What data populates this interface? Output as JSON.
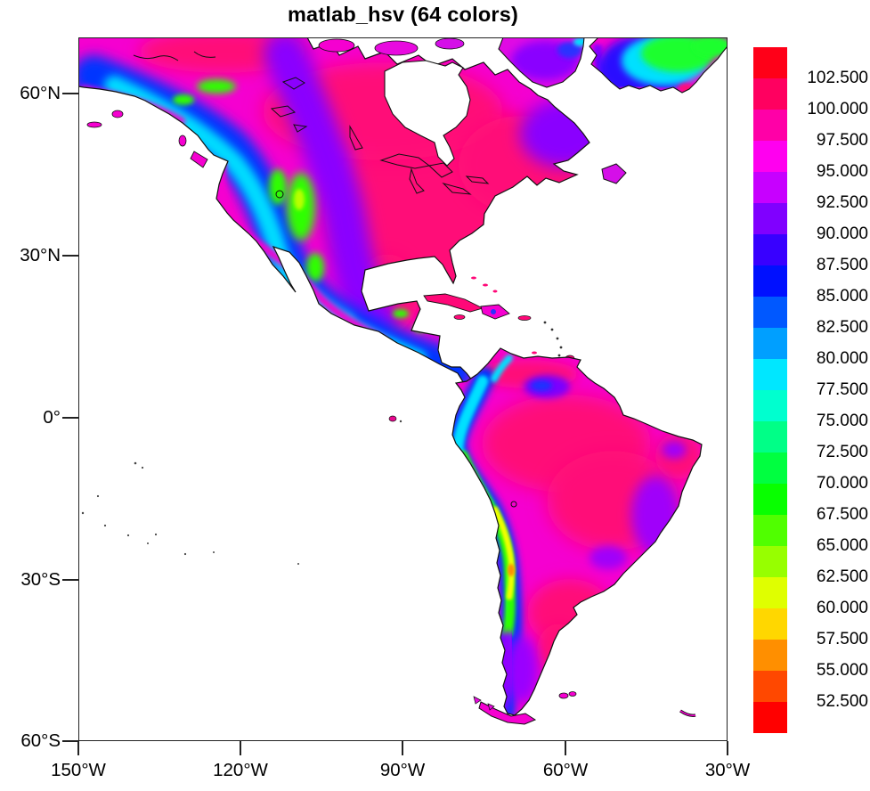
{
  "title": "matlab_hsv (64 colors)",
  "axes": {
    "x_ticks": [
      "150°W",
      "120°W",
      "90°W",
      "60°W",
      "30°W"
    ],
    "y_ticks": [
      "60°N",
      "30°N",
      "0°",
      "30°S",
      "60°S"
    ]
  },
  "colorbar": {
    "labels": [
      "102.500",
      "100.000",
      "97.500",
      "95.000",
      "92.500",
      "90.000",
      "87.500",
      "85.000",
      "82.500",
      "80.000",
      "77.500",
      "75.000",
      "72.500",
      "70.000",
      "67.500",
      "65.000",
      "62.500",
      "60.000",
      "57.500",
      "55.000",
      "52.500"
    ],
    "segment_colors_top_to_bottom": [
      "#FF0018",
      "#FF0060",
      "#FF00A7",
      "#FF00EF",
      "#C700FF",
      "#8000FF",
      "#3800FF",
      "#0010FF",
      "#0058FF",
      "#009FFF",
      "#00E7FF",
      "#00FFCF",
      "#00FF87",
      "#00FF40",
      "#08FF00",
      "#50FF00",
      "#97FF00",
      "#DFFF00",
      "#FFD700",
      "#FF8F00",
      "#FF4800",
      "#FF0000"
    ]
  },
  "chart_data": {
    "type": "heatmap",
    "subtype": "filled-contour-map-over-geography",
    "title": "matlab_hsv (64 colors)",
    "colormap": "matlab_hsv",
    "colormap_color_count": 64,
    "map_region": "North America and South America",
    "ocean_fill": "#FFFFFF",
    "coastline_color": "#000000",
    "x_axis": {
      "tick_labels": [
        "150°W",
        "120°W",
        "90°W",
        "60°W",
        "30°W"
      ],
      "lon_range_deg": [
        -150,
        -30
      ]
    },
    "y_axis": {
      "tick_labels": [
        "60°N",
        "30°N",
        "0°",
        "30°S",
        "60°S"
      ],
      "lat_range_deg": [
        -61,
        71
      ]
    },
    "contour_levels": [
      52.5,
      55.0,
      57.5,
      60.0,
      62.5,
      65.0,
      67.5,
      70.0,
      72.5,
      75.0,
      77.5,
      80.0,
      82.5,
      85.0,
      87.5,
      90.0,
      92.5,
      95.0,
      97.5,
      100.0,
      102.5
    ],
    "level_step": 2.5,
    "legend_position": "right-vertical",
    "legend_values_increase": "upward",
    "n_fill_colors_used": 22,
    "observed_features": [
      {
        "region": "Eastern North America lowlands and Gulf coast",
        "approx_level": "100–102.5",
        "color": "crimson / deep pink"
      },
      {
        "region": "Central Canada, coastal fringes, most lowland coasts",
        "approx_level": "95–100",
        "color": "magenta"
      },
      {
        "region": "Rocky Mountains / Great Basin / British Columbia / Alaska Range",
        "approx_level": "72.5–87.5",
        "color": "blue to cyan"
      },
      {
        "region": "Colorado Rockies core",
        "approx_level": "62.5–70",
        "color": "green / yellow-green"
      },
      {
        "region": "Sierra Madre (Mexico) and Central American cordillera",
        "approx_level": "75–90",
        "color": "cyan / blue"
      },
      {
        "region": "Greenland interior",
        "approx_level": "65–75",
        "color": "green with cyan/blue fringe"
      },
      {
        "region": "Baffin Island and Labrador plateau",
        "approx_level": "90–95",
        "color": "purple"
      },
      {
        "region": "Amazon basin and Argentine pampas",
        "approx_level": "100–102.5",
        "color": "crimson / deep pink"
      },
      {
        "region": "Northern Andes (Colombia/Ecuador)",
        "approx_level": "77.5–87.5",
        "color": "cyan / blue"
      },
      {
        "region": "Andes Altiplano (Peru/Bolivia/N. Chile)",
        "approx_level": "57.5–67.5",
        "color": "yellow to green, small orange spot"
      },
      {
        "region": "Patagonian Andes",
        "approx_level": "87.5–95",
        "color": "blue / purple"
      },
      {
        "region": "Guiana and Brazilian highlands",
        "approx_level": "90–95",
        "color": "purple / blue patches"
      },
      {
        "region": "Oceans and large bays (Hudson Bay, Gulf of Mexico)",
        "approx_level": "masked",
        "color": "white"
      }
    ]
  }
}
